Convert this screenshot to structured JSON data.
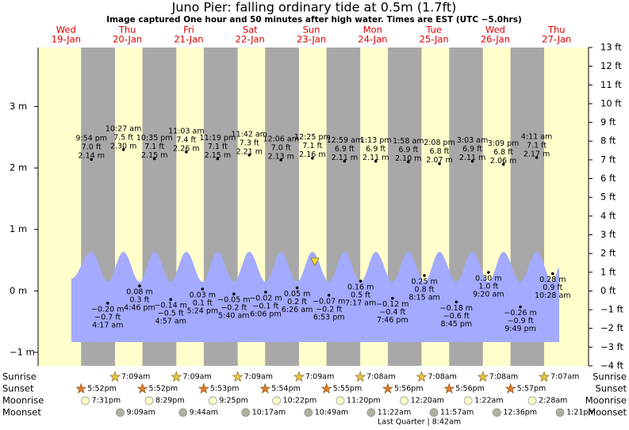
{
  "chart_data": {
    "type": "tide",
    "title": "Juno Pier: falling  ordinary tide at 0.5m (1.7ft)",
    "subtitle": "Image captured One hour and 50 minutes after high water. Times are EST (UTC −5.0hrs)",
    "ylim": [
      -1.22,
      3.96
    ],
    "yticks": [
      {
        "value": 3,
        "label": "3 m"
      },
      {
        "value": 2,
        "label": "2 m"
      },
      {
        "value": 1,
        "label": "1 m"
      },
      {
        "value": 0,
        "label": "0 m"
      },
      {
        "value": -1,
        "label": "−1 m"
      }
    ],
    "y2lim": [
      -4,
      13
    ],
    "y2ticks": [
      {
        "value": 13,
        "label": "13 ft"
      },
      {
        "value": 12,
        "label": "12 ft"
      },
      {
        "value": 11,
        "label": "11 ft"
      },
      {
        "value": 10,
        "label": "10 ft"
      },
      {
        "value": 9,
        "label": "9 ft"
      },
      {
        "value": 8,
        "label": "8 ft"
      },
      {
        "value": 7,
        "label": "7 ft"
      },
      {
        "value": 6,
        "label": "6 ft"
      },
      {
        "value": 5,
        "label": "5 ft"
      },
      {
        "value": 4,
        "label": "4 ft"
      },
      {
        "value": 3,
        "label": "3 ft"
      },
      {
        "value": 2,
        "label": "2 ft"
      },
      {
        "value": 1,
        "label": "1 ft"
      },
      {
        "value": 0,
        "label": "0 ft"
      },
      {
        "value": -1,
        "label": "−1 ft"
      },
      {
        "value": -2,
        "label": "−2 ft"
      },
      {
        "value": -3,
        "label": "−3 ft"
      },
      {
        "value": -4,
        "label": "−4 ft"
      }
    ],
    "row_labels": [
      "Sunrise",
      "Sunset",
      "Moonrise",
      "Moonset"
    ],
    "moon_phase": "Last Quarter | 8:42am",
    "colors": {
      "day": "#ffffcc",
      "night": "#a8a8a8",
      "water": "#a3aaff",
      "header": "#e00000"
    },
    "days": [
      {
        "weekday": "Wed",
        "date": "19-Jan",
        "sunset": "5:52pm",
        "moonrise": "7:31pm",
        "tides": [
          {
            "time": "9:54 pm",
            "ft_label": "7.0 ft",
            "value": 2.14,
            "value_label": "2.14 m"
          }
        ]
      },
      {
        "weekday": "Thu",
        "date": "20-Jan",
        "sunrise": "7:09am",
        "sunset": "5:52pm",
        "moonrise": "8:29pm",
        "moonset": "9:09am",
        "tides": [
          {
            "time": "4:17 am",
            "ft_label": "−0.7 ft",
            "value": -0.2,
            "value_label": "−0.20 m"
          },
          {
            "time": "10:27 am",
            "ft_label": "7.5 ft",
            "value": 2.3,
            "value_label": "2.30 m"
          },
          {
            "time": "4:46 pm",
            "ft_label": "0.3 ft",
            "value": 0.08,
            "value_label": "0.08 m"
          },
          {
            "time": "10:35 pm",
            "ft_label": "7.1 ft",
            "value": 2.15,
            "value_label": "2.15 m"
          }
        ]
      },
      {
        "weekday": "Fri",
        "date": "21-Jan",
        "sunrise": "7:09am",
        "sunset": "5:53pm",
        "moonrise": "9:25pm",
        "moonset": "9:44am",
        "tides": [
          {
            "time": "4:57 am",
            "ft_label": "−0.5 ft",
            "value": -0.14,
            "value_label": "−0.14 m"
          },
          {
            "time": "11:03 am",
            "ft_label": "7.4 ft",
            "value": 2.26,
            "value_label": "2.26 m"
          },
          {
            "time": "5:24 pm",
            "ft_label": "0.1 ft",
            "value": 0.03,
            "value_label": "0.03 m"
          },
          {
            "time": "11:19 pm",
            "ft_label": "7.1 ft",
            "value": 2.15,
            "value_label": "2.15 m"
          }
        ]
      },
      {
        "weekday": "Sat",
        "date": "22-Jan",
        "sunrise": "7:09am",
        "sunset": "5:54pm",
        "moonrise": "10:22pm",
        "moonset": "10:17am",
        "tides": [
          {
            "time": "5:40 am",
            "ft_label": "−0.2 ft",
            "value": -0.05,
            "value_label": "−0.05 m"
          },
          {
            "time": "11:42 am",
            "ft_label": "7.3 ft",
            "value": 2.21,
            "value_label": "2.21 m"
          },
          {
            "time": "6:06 pm",
            "ft_label": "−0.1 ft",
            "value": -0.02,
            "value_label": "−0.02 m"
          }
        ]
      },
      {
        "weekday": "Sun",
        "date": "23-Jan",
        "sunrise": "7:09am",
        "sunset": "5:55pm",
        "moonrise": "11:20pm",
        "moonset": "10:49am",
        "tides": [
          {
            "time": "12:06 am",
            "ft_label": "7.0 ft",
            "value": 2.13,
            "value_label": "2.13 m"
          },
          {
            "time": "6:26 am",
            "ft_label": "0.2 ft",
            "value": 0.05,
            "value_label": "0.05 m"
          },
          {
            "time": "12:25 pm",
            "ft_label": "7.1 ft",
            "value": 2.16,
            "value_label": "2.16 m"
          },
          {
            "time": "6:53 pm",
            "ft_label": "−0.2 ft",
            "value": -0.07,
            "value_label": "−0.07 m"
          }
        ]
      },
      {
        "weekday": "Mon",
        "date": "24-Jan",
        "sunrise": "7:08am",
        "sunset": "5:56pm",
        "moonset": "11:22am",
        "tides": [
          {
            "time": "12:59 am",
            "ft_label": "6.9 ft",
            "value": 2.11,
            "value_label": "2.11 m"
          },
          {
            "time": "7:17 am",
            "ft_label": "0.5 ft",
            "value": 0.16,
            "value_label": "0.16 m"
          },
          {
            "time": "1:13 pm",
            "ft_label": "6.9 ft",
            "value": 2.11,
            "value_label": "2.11 m"
          },
          {
            "time": "7:46 pm",
            "ft_label": "−0.4 ft",
            "value": -0.12,
            "value_label": "−0.12 m"
          }
        ]
      },
      {
        "weekday": "Tue",
        "date": "25-Jan",
        "sunrise": "7:08am",
        "sunset": "5:56pm",
        "moonrise": "12:20am",
        "moonset": "11:57am",
        "tides": [
          {
            "time": "1:58 am",
            "ft_label": "6.9 ft",
            "value": 2.1,
            "value_label": "2.10 m"
          },
          {
            "time": "8:15 am",
            "ft_label": "0.8 ft",
            "value": 0.25,
            "value_label": "0.25 m"
          },
          {
            "time": "2:08 pm",
            "ft_label": "6.8 ft",
            "value": 2.07,
            "value_label": "2.07 m"
          },
          {
            "time": "8:45 pm",
            "ft_label": "−0.6 ft",
            "value": -0.18,
            "value_label": "−0.18 m"
          }
        ]
      },
      {
        "weekday": "Wed",
        "date": "26-Jan",
        "sunrise": "7:08am",
        "sunset": "5:57pm",
        "moonrise": "1:22am",
        "moonset": "12:36pm",
        "tides": [
          {
            "time": "3:03 am",
            "ft_label": "6.9 ft",
            "value": 2.11,
            "value_label": "2.11 m"
          },
          {
            "time": "9:20 am",
            "ft_label": "1.0 ft",
            "value": 0.3,
            "value_label": "0.30 m"
          },
          {
            "time": "3:09 pm",
            "ft_label": "6.8 ft",
            "value": 2.06,
            "value_label": "2.06 m"
          },
          {
            "time": "9:49 pm",
            "ft_label": "−0.9 ft",
            "value": -0.26,
            "value_label": "−0.26 m"
          }
        ]
      },
      {
        "weekday": "Thu",
        "date": "27-Jan",
        "sunrise": "7:07am",
        "moonrise": "2:28am",
        "moonset": "1:21pm",
        "tides": [
          {
            "time": "4:11 am",
            "ft_label": "7.1 ft",
            "value": 2.17,
            "value_label": "2.17 m"
          },
          {
            "time": "10:28 am",
            "ft_label": "0.9 ft",
            "value": 0.28,
            "value_label": "0.28 m"
          }
        ]
      }
    ]
  }
}
